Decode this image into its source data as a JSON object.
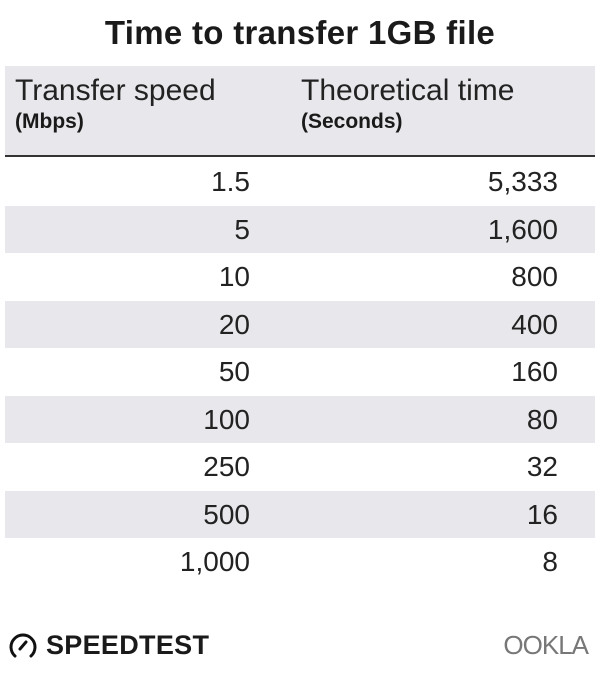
{
  "chart_data": {
    "type": "table",
    "title": "Time to transfer 1GB file",
    "columns": [
      {
        "label": "Transfer speed",
        "unit": "(Mbps)"
      },
      {
        "label": "Theoretical time",
        "unit": "(Seconds)"
      }
    ],
    "rows": [
      [
        "1.5",
        "5,333"
      ],
      [
        "5",
        "1,600"
      ],
      [
        "10",
        "800"
      ],
      [
        "20",
        "400"
      ],
      [
        "50",
        "160"
      ],
      [
        "100",
        "80"
      ],
      [
        "250",
        "32"
      ],
      [
        "500",
        "16"
      ],
      [
        "1,000",
        "8"
      ]
    ],
    "colors": {
      "header_bg": "#e8e8ec",
      "stripe_bg": "#e8e8ec",
      "text": "#222222"
    }
  },
  "footer": {
    "speedtest_logo": "SPEEDTEST",
    "ookla_logo": "OOKLA",
    "speedtest_icon": "gauge-icon"
  }
}
